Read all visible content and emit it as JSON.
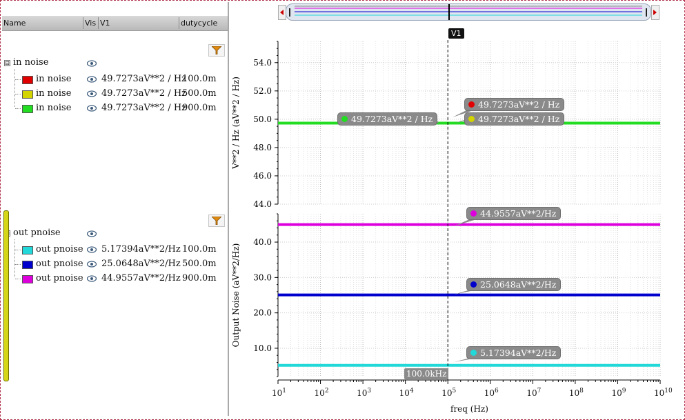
{
  "table": {
    "columns": [
      "Name",
      "Vis",
      "V1",
      "dutycycle"
    ]
  },
  "groups": [
    {
      "name": "in noise",
      "expander": "⊟",
      "rows": [
        {
          "name": "in noise",
          "color": "#e00000",
          "value": "49.7273aV**2 / Hz",
          "duty": "100.0m"
        },
        {
          "name": "in noise",
          "color": "#d4d400",
          "value": "49.7273aV**2 / Hz",
          "duty": "500.0m"
        },
        {
          "name": "in noise",
          "color": "#22dd22",
          "value": "49.7273aV**2 / Hz",
          "duty": "900.0m"
        }
      ]
    },
    {
      "name": "out pnoise",
      "expander": "⊞",
      "rows": [
        {
          "name": "out pnoise",
          "color": "#22d8d8",
          "value": "5.17394aV**2/Hz",
          "duty": "100.0m"
        },
        {
          "name": "out pnoise",
          "color": "#0000cc",
          "value": "25.0648aV**2/Hz",
          "duty": "500.0m"
        },
        {
          "name": "out pnoise",
          "color": "#dd00dd",
          "value": "44.9557aV**2/Hz",
          "duty": "900.0m"
        }
      ]
    }
  ],
  "marker": {
    "label": "V1",
    "freq_label": "100.0kHz"
  },
  "chart_data": [
    {
      "type": "line",
      "ylabel": "V**2 / Hz (aV**2 / Hz)",
      "xlabel": "freq (Hz)",
      "xscale": "log",
      "xlim": [
        10,
        10000000000
      ],
      "ylim": [
        44.0,
        55.5
      ],
      "yticks": [
        "44.0",
        "46.0",
        "48.0",
        "50.0",
        "52.0",
        "54.0"
      ],
      "grid": true,
      "series": [
        {
          "color": "#e00000",
          "y": 49.7273
        },
        {
          "color": "#d4d400",
          "y": 49.7273
        },
        {
          "color": "#22dd22",
          "y": 49.7273
        }
      ],
      "callouts": [
        {
          "text": "49.7273aV**2 / Hz",
          "color": "#22dd22"
        },
        {
          "text": "49.7273aV**2 / Hz",
          "color": "#e00000"
        },
        {
          "text": "49.7273aV**2 / Hz",
          "color": "#d4d400"
        }
      ]
    },
    {
      "type": "line",
      "ylabel": "Output Noise (aV**2/Hz)",
      "xlabel": "freq (Hz)",
      "xscale": "log",
      "xlim": [
        10,
        10000000000
      ],
      "ylim": [
        2.0,
        48.0
      ],
      "yticks": [
        "10.0",
        "20.0",
        "30.0",
        "40.0"
      ],
      "grid": true,
      "series": [
        {
          "color": "#dd00dd",
          "y": 44.9557
        },
        {
          "color": "#0000cc",
          "y": 25.0648
        },
        {
          "color": "#22d8d8",
          "y": 5.17394
        }
      ],
      "callouts": [
        {
          "text": "44.9557aV**2/Hz",
          "color": "#dd00dd"
        },
        {
          "text": "25.0648aV**2/Hz",
          "color": "#0000cc"
        },
        {
          "text": "5.17394aV**2/Hz",
          "color": "#22d8d8"
        }
      ]
    }
  ],
  "xticks": {
    "base": "10",
    "exponents": [
      "1",
      "2",
      "3",
      "4",
      "5",
      "6",
      "7",
      "8",
      "9",
      "10"
    ]
  }
}
